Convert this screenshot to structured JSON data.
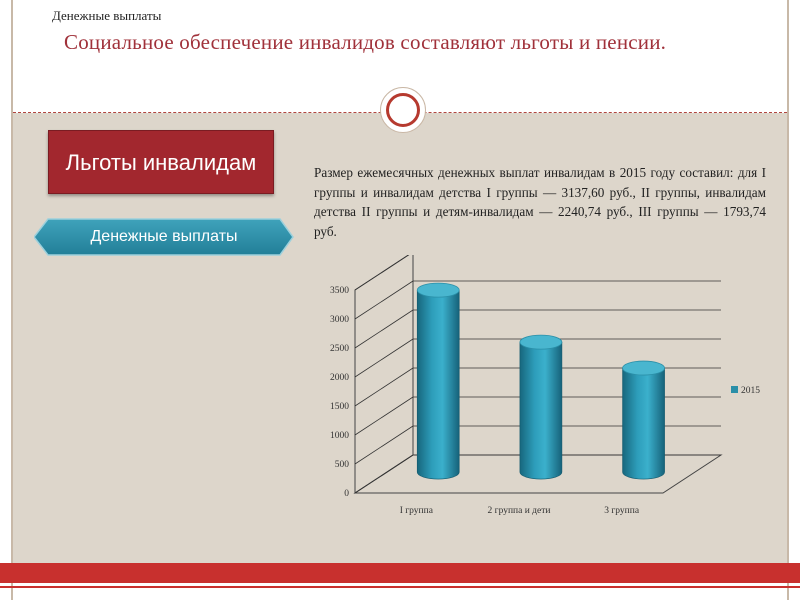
{
  "header": {
    "small_title": "Денежные выплаты",
    "main_title": "Социальное обеспечение инвалидов составляют льготы и пенсии."
  },
  "left_panel": {
    "benefit_box_label": "Льготы инвалидам",
    "payments_label": "Денежные выплаты"
  },
  "paragraph": "Размер ежемесячных денежных выплат инвалидам в 2015 году составил: для I группы и инвалидам детства I группы — 3137,60 руб., II группы, инвалидам детства II группы и детям-инвалидам — 2240,74 руб., III группы — 1793,74 руб.",
  "colors": {
    "accent_red": "#a2272e",
    "footer_red": "#c8302e",
    "teal": "#2a8fa8",
    "background": "#ddd6cb"
  },
  "chart_data": {
    "type": "bar",
    "style": "3d-cylinder",
    "categories": [
      "I группа",
      "2 группа и дети",
      "3 группа"
    ],
    "series": [
      {
        "name": "2015",
        "values": [
          3137.6,
          2240.74,
          1793.74
        ]
      }
    ],
    "yticks": [
      "0",
      "500",
      "1000",
      "1500",
      "2000",
      "2500",
      "3000",
      "3500"
    ],
    "ylim": [
      0,
      3500
    ],
    "grid": true,
    "legend_position": "right"
  }
}
